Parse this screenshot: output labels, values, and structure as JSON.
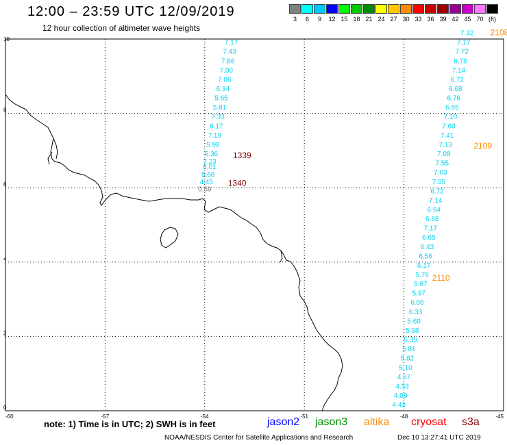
{
  "header": {
    "title": "12:00 – 23:59 UTC 12/09/2019",
    "subtitle": "12 hour collection of altimeter wave heights"
  },
  "legend": {
    "entries": [
      {
        "label": "3",
        "color": "#808080"
      },
      {
        "label": "6",
        "color": "#00ffff"
      },
      {
        "label": "9",
        "color": "#00c8ff"
      },
      {
        "label": "12",
        "color": "#0000ff"
      },
      {
        "label": "15",
        "color": "#00ff00"
      },
      {
        "label": "18",
        "color": "#00c800"
      },
      {
        "label": "21",
        "color": "#008c00"
      },
      {
        "label": "24",
        "color": "#ffff00"
      },
      {
        "label": "27",
        "color": "#ffc800"
      },
      {
        "label": "30",
        "color": "#ff8c00"
      },
      {
        "label": "33",
        "color": "#ff0000"
      },
      {
        "label": "36",
        "color": "#c80000"
      },
      {
        "label": "39",
        "color": "#960000"
      },
      {
        "label": "42",
        "color": "#960096"
      },
      {
        "label": "45",
        "color": "#c800c8"
      },
      {
        "label": "70",
        "color": "#ff78ff"
      },
      {
        "label": "(ft)",
        "color": "#000000"
      }
    ]
  },
  "axes": {
    "x_ticks": [
      "-60",
      "-57",
      "-54",
      "-51",
      "-48",
      "-45"
    ],
    "y_ticks": [
      "0",
      "2",
      "4",
      "6",
      "8",
      "10"
    ]
  },
  "passes": [
    {
      "time": "1339",
      "color": "#800000",
      "lat": 6.8,
      "lon": -53.15
    },
    {
      "time": "1340",
      "color": "#800000",
      "lat": 6.05,
      "lon": -53.3
    },
    {
      "time": "2108",
      "color": "#ff8c00",
      "lat": 10.1,
      "lon": -45.4
    },
    {
      "time": "2109",
      "color": "#ff8c00",
      "lat": 7.05,
      "lon": -45.9
    },
    {
      "time": "2110",
      "color": "#ff8c00",
      "lat": 3.5,
      "lon": -47.15
    }
  ],
  "track1": {
    "color": "#00d0f0",
    "values": [
      "7.17",
      "7.43",
      "7.66",
      "7.00",
      "7.06",
      "6.34",
      "5.65",
      "5.81",
      "7.33",
      "6.17",
      "7.19",
      "5.98",
      "6.36",
      "7.23",
      "6.01",
      "5.68",
      "4.45",
      "0.59"
    ],
    "points": [
      [
        9.85,
        -53.0
      ],
      [
        9.6,
        -53.05
      ],
      [
        9.35,
        -53.1
      ],
      [
        9.1,
        -53.15
      ],
      [
        8.85,
        -53.2
      ],
      [
        8.6,
        -53.25
      ],
      [
        8.35,
        -53.3
      ],
      [
        8.1,
        -53.35
      ],
      [
        7.85,
        -53.4
      ],
      [
        7.6,
        -53.45
      ],
      [
        7.35,
        -53.5
      ],
      [
        7.1,
        -53.55
      ],
      [
        6.85,
        -53.6
      ],
      [
        6.65,
        -53.65
      ],
      [
        6.5,
        -53.65
      ],
      [
        6.3,
        -53.7
      ],
      [
        6.1,
        -53.75
      ],
      [
        5.9,
        -53.8
      ]
    ]
  },
  "track2": {
    "color": "#00d0f0",
    "values": [
      "7.32",
      "7.17",
      "7.72",
      "6.78",
      "7.14",
      "6.72",
      "6.68",
      "6.76",
      "6.95",
      "7.10",
      "7.60",
      "7.41",
      "7.13",
      "7.08",
      "7.55",
      "7.03",
      "7.05",
      "6.72",
      "7.14",
      "6.94",
      "6.88",
      "7.17",
      "6.65",
      "6.43",
      "6.56",
      "6.17",
      "5.76",
      "5.97",
      "5.97",
      "6.06",
      "6.33",
      "5.60",
      "5.38",
      "5.39",
      "5.81",
      "5.82",
      "5.10",
      "4.67",
      "4.53",
      "4.09",
      "4.43"
    ],
    "points": [
      [
        10.1,
        -45.9
      ],
      [
        9.85,
        -46.0
      ],
      [
        9.6,
        -46.05
      ],
      [
        9.35,
        -46.1
      ],
      [
        9.1,
        -46.15
      ],
      [
        8.85,
        -46.2
      ],
      [
        8.6,
        -46.25
      ],
      [
        8.35,
        -46.3
      ],
      [
        8.1,
        -46.35
      ],
      [
        7.85,
        -46.4
      ],
      [
        7.6,
        -46.45
      ],
      [
        7.35,
        -46.5
      ],
      [
        7.1,
        -46.55
      ],
      [
        6.85,
        -46.6
      ],
      [
        6.6,
        -46.65
      ],
      [
        6.35,
        -46.7
      ],
      [
        6.1,
        -46.75
      ],
      [
        5.85,
        -46.8
      ],
      [
        5.6,
        -46.85
      ],
      [
        5.35,
        -46.9
      ],
      [
        5.1,
        -46.95
      ],
      [
        4.85,
        -47.0
      ],
      [
        4.6,
        -47.05
      ],
      [
        4.35,
        -47.1
      ],
      [
        4.1,
        -47.15
      ],
      [
        3.85,
        -47.2
      ],
      [
        3.6,
        -47.25
      ],
      [
        3.35,
        -47.3
      ],
      [
        3.1,
        -47.35
      ],
      [
        2.85,
        -47.4
      ],
      [
        2.6,
        -47.45
      ],
      [
        2.35,
        -47.5
      ],
      [
        2.1,
        -47.55
      ],
      [
        1.85,
        -47.6
      ],
      [
        1.6,
        -47.65
      ],
      [
        1.35,
        -47.7
      ],
      [
        1.1,
        -47.75
      ],
      [
        0.85,
        -47.8
      ],
      [
        0.6,
        -47.85
      ],
      [
        0.35,
        -47.9
      ],
      [
        0.1,
        -47.95
      ]
    ]
  },
  "footer": {
    "note": "note: 1) Time is in UTC; 2) SWH is in feet",
    "satellites": [
      {
        "name": "jason2",
        "color": "#0000ff"
      },
      {
        "name": "jason3",
        "color": "#008c00"
      },
      {
        "name": "altika",
        "color": "#ff8c00"
      },
      {
        "name": "cryosat",
        "color": "#ff0000"
      },
      {
        "name": "s3a",
        "color": "#800000"
      }
    ],
    "credit": "NOAA/NESDIS Center for Satellite Applications and Research",
    "timestamp": "Dec 10 13:27:41 UTC 2019"
  }
}
